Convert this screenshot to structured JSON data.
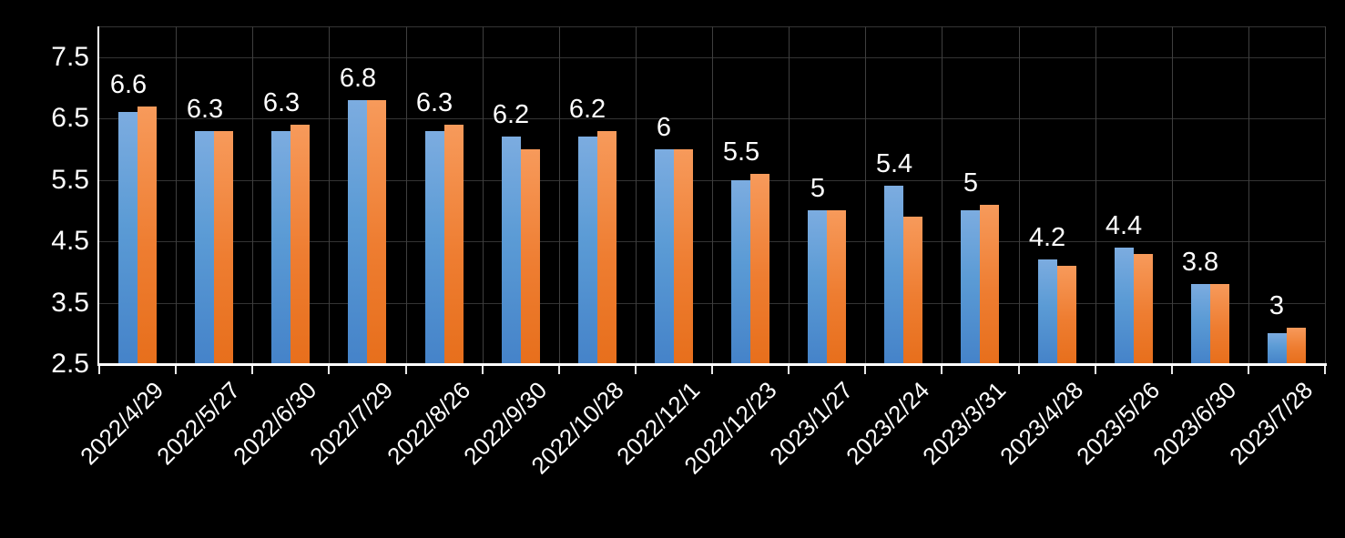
{
  "chart_data": {
    "type": "bar",
    "title": "",
    "categories": [
      "2022/4/29",
      "2022/5/27",
      "2022/6/30",
      "2022/7/29",
      "2022/8/26",
      "2022/9/30",
      "2022/10/28",
      "2022/12/1",
      "2022/12/23",
      "2023/1/27",
      "2023/2/24",
      "2023/3/31",
      "2023/4/28",
      "2023/5/26",
      "2023/6/30",
      "2023/7/28"
    ],
    "series": [
      {
        "name": "blue-series",
        "color": "#5B9BD5",
        "values": [
          6.6,
          6.3,
          6.3,
          6.8,
          6.3,
          6.2,
          6.2,
          6.0,
          5.5,
          5.0,
          5.4,
          5.0,
          4.2,
          4.4,
          3.8,
          3.0
        ]
      },
      {
        "name": "orange-series",
        "color": "#ED7D31",
        "values": [
          6.7,
          6.3,
          6.4,
          6.8,
          6.4,
          6.0,
          6.3,
          6.0,
          5.6,
          5.0,
          4.9,
          5.1,
          4.1,
          4.3,
          3.8,
          3.1
        ]
      }
    ],
    "data_labels": [
      "6.6",
      "6.3",
      "6.3",
      "6.8",
      "6.3",
      "6.2",
      "6.2",
      "6",
      "5.5",
      "5",
      "5.4",
      "5",
      "4.2",
      "4.4",
      "3.8",
      "3"
    ],
    "data_labels_series": "blue-series",
    "y_ticks": [
      "7.5",
      "6.5",
      "5.5",
      "4.5",
      "3.5",
      "2.5"
    ],
    "ylim": [
      2.5,
      8.0
    ],
    "xlabel": "",
    "ylabel": "",
    "grid": true,
    "legend_position": "none",
    "background_color": "#000000",
    "axis_color": "#ffffff",
    "gridline_color": "#3a3a3a",
    "text_color": "#ffffff"
  }
}
